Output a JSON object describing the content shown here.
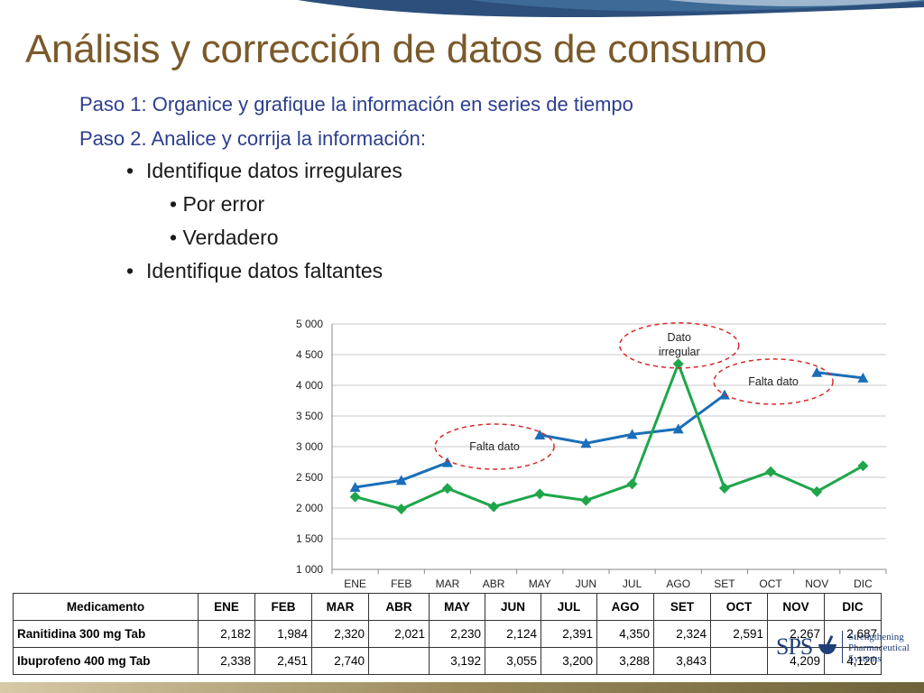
{
  "slide": {
    "title": "Análisis y corrección de datos de consumo",
    "steps": [
      "Paso 1: Organice y grafique la información en series de tiempo",
      "Paso 2. Analice y corrija la información:"
    ],
    "bullets": [
      {
        "level": 1,
        "text": "Identifique datos irregulares"
      },
      {
        "level": 2,
        "text": "• Por error"
      },
      {
        "level": 2,
        "text": "• Verdadero"
      },
      {
        "level": 1,
        "text": "Identifique datos faltantes"
      }
    ],
    "bullet_glyph": "•"
  },
  "chart_data": {
    "type": "line",
    "categories": [
      "ENE",
      "FEB",
      "MAR",
      "ABR",
      "MAY",
      "JUN",
      "JUL",
      "AGO",
      "SET",
      "OCT",
      "NOV",
      "DIC"
    ],
    "ylim": [
      1000,
      5000
    ],
    "yticks": [
      1000,
      1500,
      2000,
      2500,
      3000,
      3500,
      4000,
      4500,
      5000
    ],
    "ytick_labels": [
      "1 000",
      "1 500",
      "2 000",
      "2 500",
      "3 000",
      "3 500",
      "4 000",
      "4 500",
      "5 000"
    ],
    "grid": true,
    "series": [
      {
        "color": "#1a6fb8",
        "marker": "triangle",
        "values": [
          2338,
          2451,
          2740,
          null,
          3192,
          3055,
          3200,
          3288,
          3843,
          null,
          4209,
          4120
        ]
      },
      {
        "color": "#1fa64a",
        "marker": "diamond",
        "values": [
          2182,
          1984,
          2320,
          2021,
          2230,
          2124,
          2391,
          4350,
          2324,
          2591,
          2267,
          2687
        ]
      }
    ],
    "annotations": [
      {
        "text": "Falta dato",
        "category": "ABR",
        "value": 3000
      },
      {
        "text": "Dato irregular",
        "category": "AGO",
        "value": 4650
      },
      {
        "text": "Falta dato",
        "category": "OCT",
        "value": 4060
      }
    ]
  },
  "table": {
    "columns": [
      "Medicamento",
      "ENE",
      "FEB",
      "MAR",
      "ABR",
      "MAY",
      "JUN",
      "JUL",
      "AGO",
      "SET",
      "OCT",
      "NOV",
      "DIC"
    ],
    "rows": [
      {
        "label": "Ranitidina 300 mg Tab",
        "values": [
          "2,182",
          "1,984",
          "2,320",
          "2,021",
          "2,230",
          "2,124",
          "2,391",
          "4,350",
          "2,324",
          "2,591",
          "2,267",
          "2,687"
        ]
      },
      {
        "label": "Ibuprofeno 400 mg Tab",
        "values": [
          "2,338",
          "2,451",
          "2,740",
          "",
          "3,192",
          "3,055",
          "3,200",
          "3,288",
          "3,843",
          "",
          "4,209",
          "4,120"
        ]
      }
    ]
  },
  "logo": {
    "abbr": "SPS",
    "lines": [
      "Strengthening",
      "Pharmaceutical",
      "Systems"
    ]
  }
}
